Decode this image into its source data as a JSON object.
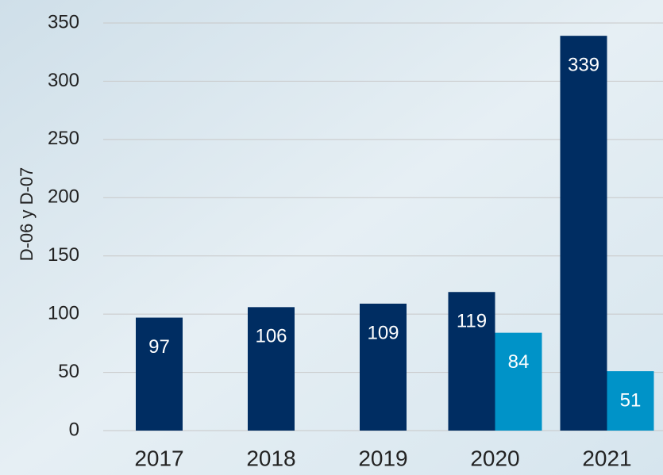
{
  "chart_data": {
    "type": "bar",
    "y_label": "D-06 y D-07",
    "categories": [
      "2017",
      "2018",
      "2019",
      "2020",
      "2021"
    ],
    "series": [
      {
        "color": "#002d62",
        "values": [
          97,
          106,
          109,
          119,
          339
        ]
      },
      {
        "color": "#0093c8",
        "values": [
          null,
          null,
          null,
          84,
          51
        ]
      }
    ],
    "ylim": [
      0,
      350
    ],
    "yticks": [
      0,
      50,
      100,
      150,
      200,
      250,
      300,
      350
    ],
    "grid": true
  }
}
